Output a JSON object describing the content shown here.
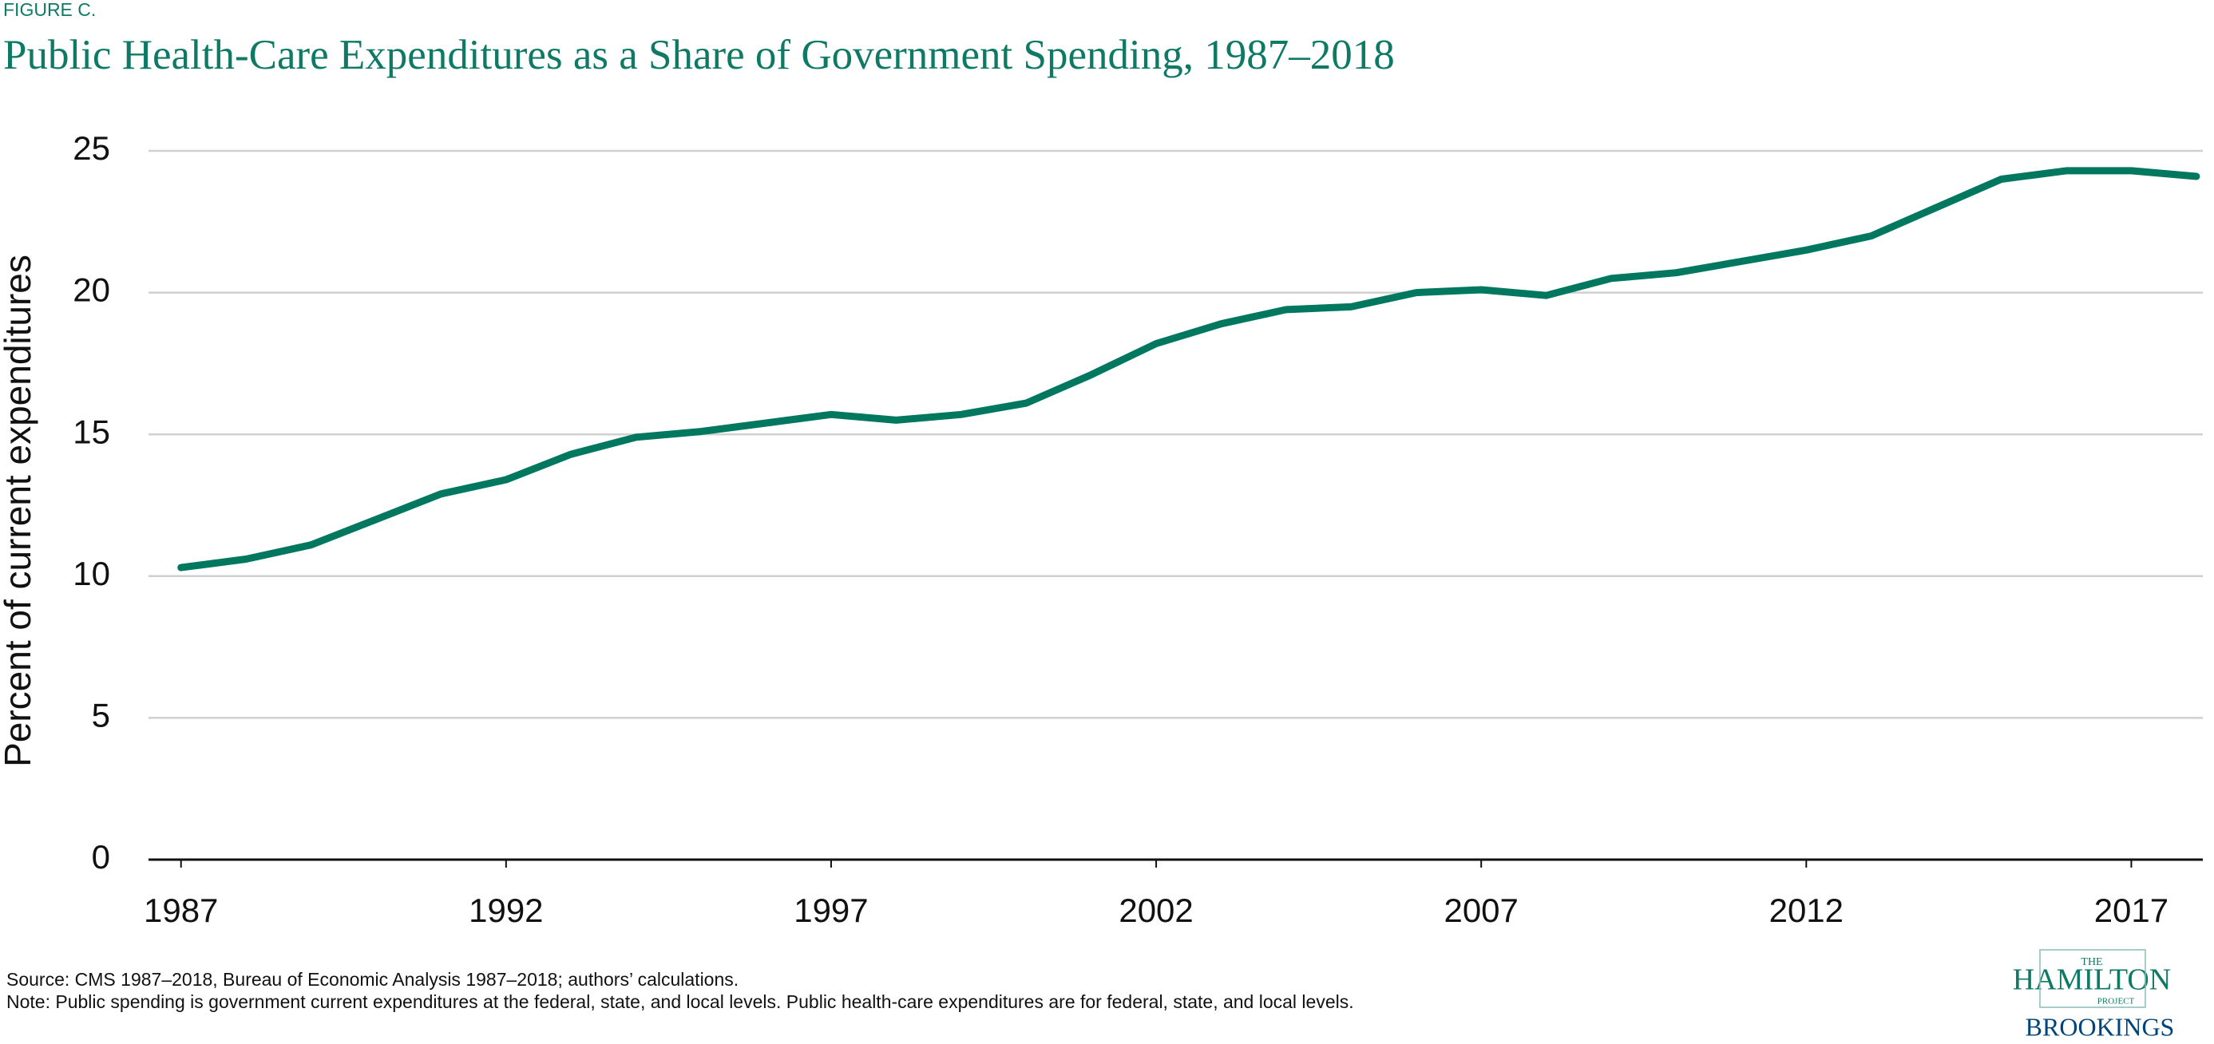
{
  "figure_label": "FIGURE C.",
  "chart_data": {
    "type": "line",
    "title": "Public Health-Care Expenditures as a Share of Government Spending, 1987–2018",
    "y_label": "Percent of current expenditures",
    "x": [
      1987,
      1988,
      1989,
      1990,
      1991,
      1992,
      1993,
      1994,
      1995,
      1996,
      1997,
      1998,
      1999,
      2000,
      2001,
      2002,
      2003,
      2004,
      2005,
      2006,
      2007,
      2008,
      2009,
      2010,
      2011,
      2012,
      2013,
      2014,
      2015,
      2016,
      2017,
      2018
    ],
    "values": [
      10.3,
      10.6,
      11.1,
      12.0,
      12.9,
      13.4,
      14.3,
      14.9,
      15.1,
      15.4,
      15.7,
      15.5,
      15.7,
      16.1,
      17.1,
      18.2,
      18.9,
      19.4,
      19.5,
      20.0,
      20.1,
      19.9,
      20.5,
      20.7,
      21.1,
      21.5,
      22.0,
      23.0,
      24.0,
      24.3,
      24.3,
      24.1
    ],
    "color": "#00775f",
    "xlim": [
      1986.5,
      2018.1
    ],
    "xticks": [
      1987,
      1992,
      1997,
      2002,
      2007,
      2012,
      2017
    ],
    "ylim": [
      0,
      25
    ],
    "yticks": [
      0,
      5,
      10,
      15,
      20,
      25
    ],
    "grid": true
  },
  "source": "Source: CMS 1987–2018, Bureau of Economic Analysis 1987–2018; authors’ calculations.",
  "note": "Note: Public spending is government current expenditures at the federal, state, and local levels. Public health-care expenditures are for federal, state, and local levels.",
  "logo": {
    "the": "THE",
    "hamilton": "HAMILTON",
    "project": "PROJECT",
    "brookings": "BROOKINGS"
  }
}
